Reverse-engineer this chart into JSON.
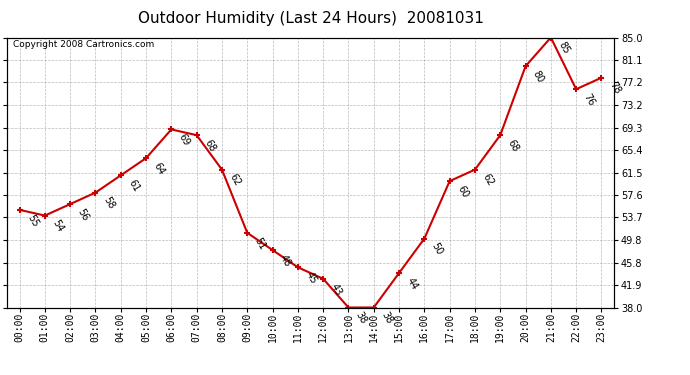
{
  "title": "Outdoor Humidity (Last 24 Hours)  20081031",
  "copyright": "Copyright 2008 Cartronics.com",
  "hours": [
    0,
    1,
    2,
    3,
    4,
    5,
    6,
    7,
    8,
    9,
    10,
    11,
    12,
    13,
    14,
    15,
    16,
    17,
    18,
    19,
    20,
    21,
    22,
    23
  ],
  "values": [
    55,
    54,
    56,
    58,
    61,
    64,
    69,
    68,
    62,
    51,
    48,
    45,
    43,
    38,
    38,
    44,
    50,
    60,
    62,
    68,
    80,
    85,
    76,
    78
  ],
  "line_color": "#cc0000",
  "marker_color": "#cc0000",
  "bg_color": "#ffffff",
  "grid_color": "#aaaaaa",
  "text_color": "#000000",
  "ylim_min": 38.0,
  "ylim_max": 85.0,
  "yticks": [
    38.0,
    41.9,
    45.8,
    49.8,
    53.7,
    57.6,
    61.5,
    65.4,
    69.3,
    73.2,
    77.2,
    81.1,
    85.0
  ],
  "title_fontsize": 11,
  "label_fontsize": 7,
  "copyright_fontsize": 6.5,
  "axis_fontsize": 7
}
